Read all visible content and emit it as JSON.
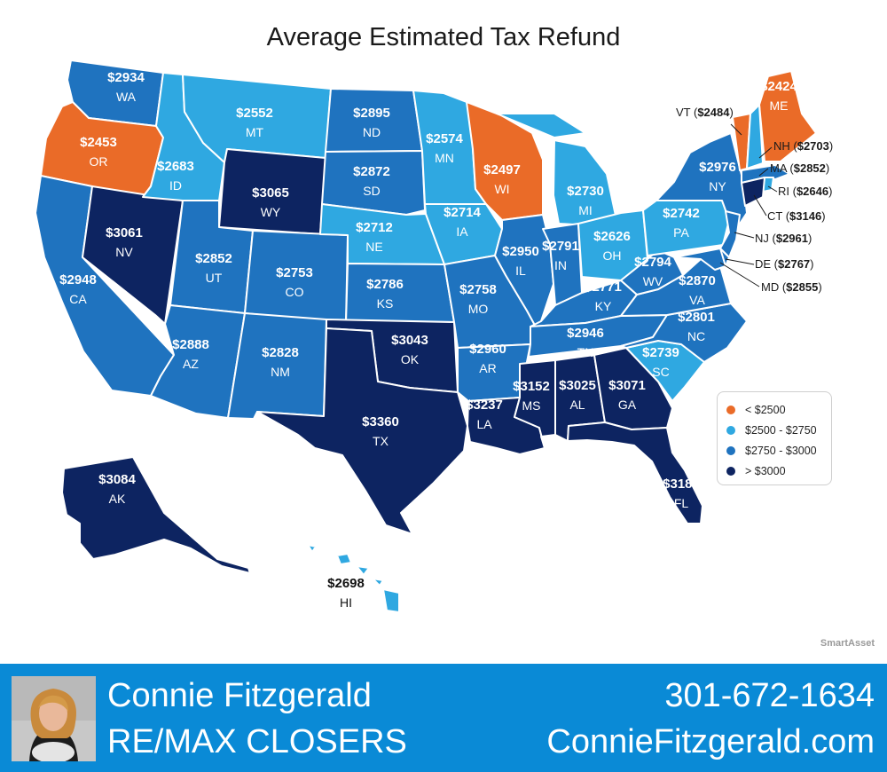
{
  "title": "Average Estimated Tax Refund",
  "colors": {
    "lt2500": "#ea6b28",
    "2500_2750": "#2fa8e1",
    "2750_3000": "#1f73bf",
    "gt3000": "#0d2461"
  },
  "states": [
    {
      "abbr": "WA",
      "value": "$2934",
      "cat": "2750_3000"
    },
    {
      "abbr": "OR",
      "value": "$2453",
      "cat": "lt2500"
    },
    {
      "abbr": "CA",
      "value": "$2948",
      "cat": "2750_3000"
    },
    {
      "abbr": "NV",
      "value": "$3061",
      "cat": "gt3000"
    },
    {
      "abbr": "ID",
      "value": "$2683",
      "cat": "2500_2750"
    },
    {
      "abbr": "MT",
      "value": "$2552",
      "cat": "2500_2750"
    },
    {
      "abbr": "WY",
      "value": "$3065",
      "cat": "gt3000"
    },
    {
      "abbr": "UT",
      "value": "$2852",
      "cat": "2750_3000"
    },
    {
      "abbr": "AZ",
      "value": "$2888",
      "cat": "2750_3000"
    },
    {
      "abbr": "CO",
      "value": "$2753",
      "cat": "2750_3000"
    },
    {
      "abbr": "NM",
      "value": "$2828",
      "cat": "2750_3000"
    },
    {
      "abbr": "ND",
      "value": "$2895",
      "cat": "2750_3000"
    },
    {
      "abbr": "SD",
      "value": "$2872",
      "cat": "2750_3000"
    },
    {
      "abbr": "NE",
      "value": "$2712",
      "cat": "2500_2750"
    },
    {
      "abbr": "KS",
      "value": "$2786",
      "cat": "2750_3000"
    },
    {
      "abbr": "OK",
      "value": "$3043",
      "cat": "gt3000"
    },
    {
      "abbr": "TX",
      "value": "$3360",
      "cat": "gt3000"
    },
    {
      "abbr": "MN",
      "value": "$2574",
      "cat": "2500_2750"
    },
    {
      "abbr": "IA",
      "value": "$2714",
      "cat": "2500_2750"
    },
    {
      "abbr": "MO",
      "value": "$2758",
      "cat": "2750_3000"
    },
    {
      "abbr": "AR",
      "value": "$2960",
      "cat": "2750_3000"
    },
    {
      "abbr": "LA",
      "value": "$3237",
      "cat": "gt3000"
    },
    {
      "abbr": "WI",
      "value": "$2497",
      "cat": "lt2500"
    },
    {
      "abbr": "IL",
      "value": "$2950",
      "cat": "2750_3000"
    },
    {
      "abbr": "MI",
      "value": "$2730",
      "cat": "2500_2750"
    },
    {
      "abbr": "IN",
      "value": "$2791",
      "cat": "2750_3000"
    },
    {
      "abbr": "OH",
      "value": "$2626",
      "cat": "2500_2750"
    },
    {
      "abbr": "KY",
      "value": "$2771",
      "cat": "2750_3000"
    },
    {
      "abbr": "TN",
      "value": "$2946",
      "cat": "2750_3000"
    },
    {
      "abbr": "MS",
      "value": "$3152",
      "cat": "gt3000"
    },
    {
      "abbr": "AL",
      "value": "$3025",
      "cat": "gt3000"
    },
    {
      "abbr": "GA",
      "value": "$3071",
      "cat": "gt3000"
    },
    {
      "abbr": "FL",
      "value": "$3185",
      "cat": "gt3000"
    },
    {
      "abbr": "SC",
      "value": "$2739",
      "cat": "2500_2750"
    },
    {
      "abbr": "NC",
      "value": "$2801",
      "cat": "2750_3000"
    },
    {
      "abbr": "VA",
      "value": "$2870",
      "cat": "2750_3000"
    },
    {
      "abbr": "WV",
      "value": "$2794",
      "cat": "2750_3000"
    },
    {
      "abbr": "PA",
      "value": "$2742",
      "cat": "2500_2750"
    },
    {
      "abbr": "NY",
      "value": "$2976",
      "cat": "2750_3000"
    },
    {
      "abbr": "ME",
      "value": "$2424",
      "cat": "lt2500"
    },
    {
      "abbr": "AK",
      "value": "$3084",
      "cat": "gt3000"
    },
    {
      "abbr": "HI",
      "value": "$2698",
      "cat": "2500_2750"
    }
  ],
  "callouts": [
    {
      "abbr": "VT",
      "value": "$2484",
      "cat": "lt2500"
    },
    {
      "abbr": "NH",
      "value": "$2703",
      "cat": "2500_2750"
    },
    {
      "abbr": "MA",
      "value": "$2852",
      "cat": "2750_3000"
    },
    {
      "abbr": "RI",
      "value": "$2646",
      "cat": "2500_2750"
    },
    {
      "abbr": "CT",
      "value": "$3146",
      "cat": "gt3000"
    },
    {
      "abbr": "NJ",
      "value": "$2961",
      "cat": "2750_3000"
    },
    {
      "abbr": "DE",
      "value": "$2767",
      "cat": "2750_3000"
    },
    {
      "abbr": "MD",
      "value": "$2855",
      "cat": "2750_3000"
    }
  ],
  "legend": [
    {
      "label": "< $2500",
      "cat": "lt2500"
    },
    {
      "label": "$2500 - $2750",
      "cat": "2500_2750"
    },
    {
      "label": "$2750 - $3000",
      "cat": "2750_3000"
    },
    {
      "label": "> $3000",
      "cat": "gt3000"
    }
  ],
  "source": "SmartAsset",
  "footer": {
    "name": "Connie Fitzgerald",
    "company": "RE/MAX CLOSERS",
    "phone": "301-672-1634",
    "website": "ConnieFitzgerald.com"
  }
}
